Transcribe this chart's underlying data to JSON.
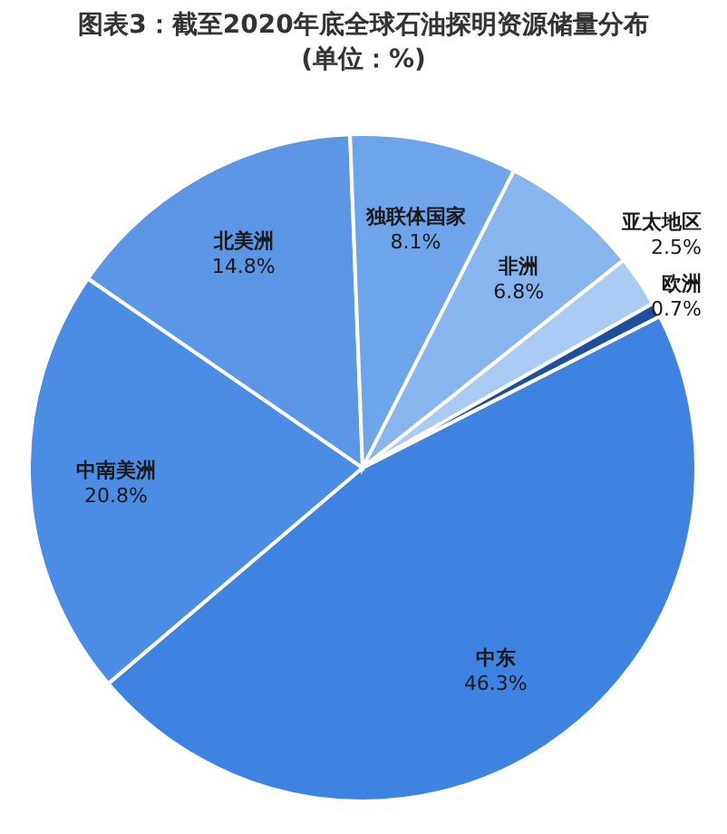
{
  "chart_data": {
    "type": "pie",
    "title": "图表3：截至2020年底全球石油探明资源储量分布",
    "subtitle": "(单位：%)",
    "categories": [
      "中东",
      "中南美洲",
      "北美洲",
      "独联体国家",
      "非洲",
      "亚太地区",
      "欧洲"
    ],
    "values": [
      46.3,
      20.8,
      14.8,
      8.1,
      6.8,
      2.5,
      0.7
    ],
    "value_labels": [
      "46.3%",
      "20.8%",
      "14.8%",
      "8.1%",
      "6.8%",
      "2.5%",
      "0.7%"
    ],
    "colors": [
      "#3f83e2",
      "#4b8ce4",
      "#5c97e6",
      "#6ea4ea",
      "#88b5ee",
      "#a9cbf4",
      "#1d4f9c"
    ],
    "legend": false
  }
}
